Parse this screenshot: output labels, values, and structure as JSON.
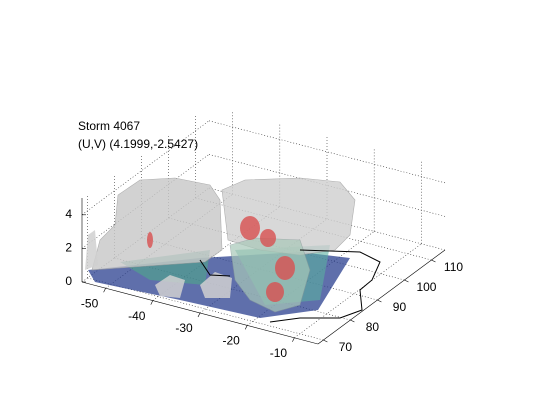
{
  "chart_data": {
    "type": "surface3d",
    "title": "Storm 4067",
    "subtitle": "(U,V) (4.1999,-2.5427)",
    "xlim": [
      -55,
      -5
    ],
    "xticks": [
      -50,
      -40,
      -30,
      -20,
      -10
    ],
    "ylim": [
      68,
      115
    ],
    "yticks": [
      70,
      80,
      90,
      100,
      110
    ],
    "zlim": [
      0,
      5
    ],
    "zticks": [
      0,
      2,
      4
    ],
    "grid": true
  }
}
